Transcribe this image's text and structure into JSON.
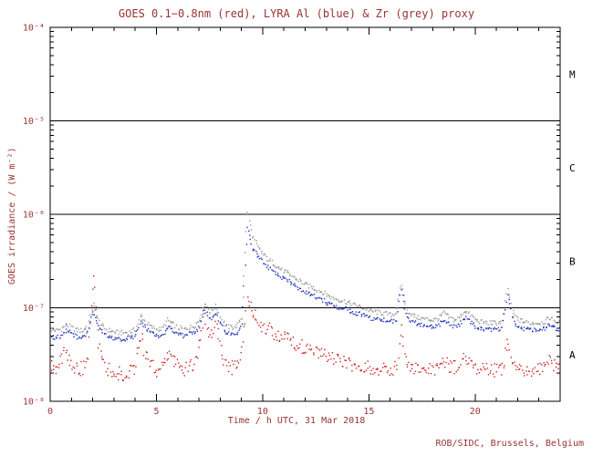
{
  "credit": "ROB/SIDC, Brussels, Belgium",
  "colors": {
    "text": "#993333",
    "frame": "#000000",
    "background": "#ffffff",
    "goes_red": "#cc2222",
    "lyra_al_blue": "#2233bb",
    "lyra_zr_grey": "#999999"
  },
  "chart_data": {
    "type": "scatter",
    "title": "GOES 0.1−0.8nm (red), LYRA Al (blue) & Zr (grey) proxy",
    "xlabel": "Time / h UTC, 31 Mar 2018",
    "ylabel": "GOES irradiance / (W m⁻²)",
    "xlim": [
      0,
      24
    ],
    "ylim": [
      1e-08,
      0.0001
    ],
    "ylog": true,
    "grid": false,
    "xticks": {
      "major": [
        0,
        5,
        10,
        15,
        20
      ],
      "minor_step": 1
    },
    "yticks": [
      {
        "v": 1e-08,
        "label": "10⁻⁸"
      },
      {
        "v": 1e-07,
        "label": "10⁻⁷"
      },
      {
        "v": 1e-06,
        "label": "10⁻⁶"
      },
      {
        "v": 1e-05,
        "label": "10⁻⁵"
      },
      {
        "v": 0.0001,
        "label": "10⁻⁴"
      }
    ],
    "hlines": [
      1e-07,
      1e-06,
      1e-05
    ],
    "flare_classes": [
      {
        "label": "M",
        "between": [
          1e-05,
          0.0001
        ]
      },
      {
        "label": "C",
        "between": [
          1e-06,
          1e-05
        ]
      },
      {
        "label": "B",
        "between": [
          1e-07,
          1e-06
        ]
      },
      {
        "label": "A",
        "between": [
          1e-08,
          1e-07
        ]
      }
    ],
    "x_start": 0,
    "x_step": 0.25,
    "value_scale": 1e-08,
    "series": [
      {
        "id": "lyra-zr",
        "name": "LYRA Zr proxy (grey)",
        "color": "#999999",
        "noise": 0.025,
        "values": [
          6.0,
          5.8,
          6.0,
          6.8,
          6.2,
          5.8,
          5.8,
          6.5,
          11,
          7.5,
          6.2,
          5.8,
          5.6,
          5.5,
          5.5,
          5.6,
          6.0,
          8.5,
          7.0,
          6.3,
          6.0,
          6.0,
          7.5,
          6.8,
          6.2,
          6.0,
          6.2,
          6.5,
          7.5,
          11.5,
          9.0,
          10.5,
          8.0,
          6.5,
          6.2,
          6.5,
          8.0,
          110,
          60,
          45,
          38,
          33,
          30,
          27,
          25,
          23,
          21,
          19.5,
          18,
          17,
          16,
          15,
          14,
          13,
          12.5,
          12,
          11.5,
          11,
          10.5,
          10,
          9.5,
          9.2,
          9.0,
          8.8,
          8.5,
          9.0,
          18,
          9.5,
          8.5,
          8.0,
          7.8,
          7.6,
          7.5,
          7.8,
          9.0,
          8.0,
          7.5,
          8.0,
          9.5,
          8.5,
          7.5,
          7.2,
          7.0,
          7.0,
          7.0,
          7.2,
          16,
          9.0,
          7.5,
          7.2,
          7.0,
          7.0,
          7.0,
          7.2,
          8.0,
          7.2,
          7.0
        ]
      },
      {
        "id": "lyra-al",
        "name": "LYRA Al proxy (blue)",
        "color": "#2233bb",
        "noise": 0.025,
        "values": [
          5.1,
          4.9,
          5.1,
          5.8,
          5.3,
          4.9,
          4.9,
          5.5,
          9.5,
          6.4,
          5.3,
          4.9,
          4.8,
          4.7,
          4.7,
          4.8,
          5.1,
          7.2,
          6.0,
          5.4,
          5.1,
          5.1,
          6.4,
          5.8,
          5.3,
          5.1,
          5.3,
          5.5,
          6.4,
          9.8,
          7.7,
          8.9,
          6.8,
          5.5,
          5.3,
          5.5,
          6.8,
          75,
          45,
          36,
          31,
          27,
          24.5,
          22,
          20.5,
          19,
          17.5,
          16,
          15,
          14,
          13.2,
          12.4,
          11.6,
          10.8,
          10.4,
          10,
          9.6,
          9.2,
          8.8,
          8.4,
          8.0,
          7.7,
          7.5,
          7.4,
          7.2,
          7.6,
          15,
          8.0,
          7.2,
          6.8,
          6.6,
          6.4,
          6.3,
          6.6,
          7.6,
          6.8,
          6.3,
          6.8,
          8.0,
          7.2,
          6.3,
          6.1,
          5.9,
          5.9,
          5.9,
          6.1,
          13.5,
          7.6,
          6.3,
          6.1,
          5.9,
          5.9,
          5.9,
          6.1,
          6.8,
          6.1,
          5.9
        ]
      },
      {
        "id": "goes",
        "name": "GOES 0.1−0.8nm (red)",
        "color": "#cc2222",
        "noise": 0.075,
        "values": [
          2.5,
          2.2,
          2.8,
          3.5,
          2.5,
          2.2,
          2.3,
          3.0,
          24,
          4.0,
          2.5,
          2.2,
          2.0,
          2.0,
          2.0,
          2.1,
          2.5,
          5.0,
          3.0,
          2.5,
          2.2,
          2.3,
          3.5,
          2.8,
          2.3,
          2.2,
          2.3,
          2.5,
          4.0,
          9.0,
          5.0,
          7.0,
          3.5,
          2.5,
          2.3,
          2.5,
          4.0,
          12,
          9.0,
          7.5,
          6.5,
          6.0,
          5.5,
          5.2,
          5.0,
          4.6,
          4.3,
          4.0,
          3.8,
          3.6,
          3.4,
          3.2,
          3.0,
          2.9,
          2.8,
          2.7,
          2.6,
          2.5,
          2.45,
          2.4,
          2.35,
          2.3,
          2.3,
          2.25,
          2.2,
          2.3,
          6.0,
          2.6,
          2.3,
          2.2,
          2.2,
          2.2,
          2.2,
          2.3,
          2.8,
          2.4,
          2.3,
          2.4,
          3.0,
          2.6,
          2.3,
          2.2,
          2.2,
          2.2,
          2.2,
          2.3,
          4.0,
          2.6,
          2.3,
          2.2,
          2.2,
          2.3,
          2.3,
          2.4,
          2.8,
          2.4,
          2.3
        ]
      }
    ]
  }
}
